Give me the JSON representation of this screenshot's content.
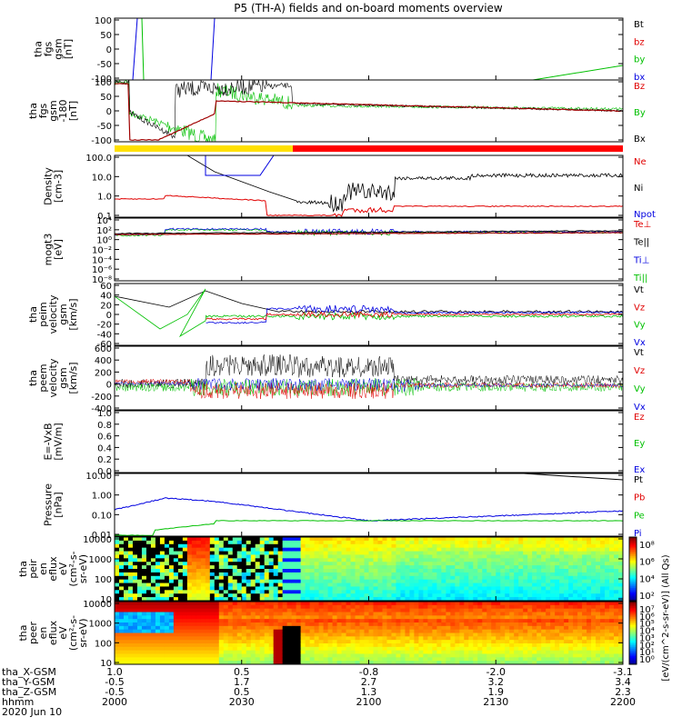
{
  "title": "P5 (TH-A) fields and on-board moments overview",
  "colors": {
    "black": "#000000",
    "red": "#e00000",
    "green": "#00c000",
    "blue": "#0000e0",
    "yellow": "#ffe000"
  },
  "chart_data": [
    {
      "type": "line",
      "name": "fgs_gsm",
      "ylabel_lines": [
        "tha",
        "fgs",
        "gsm",
        "[nT]"
      ],
      "yticks": [
        "100",
        "50",
        "0",
        "-50",
        "-100"
      ],
      "ylim": [
        -100,
        100
      ],
      "legend": [
        {
          "label": "Bt",
          "color": "black"
        },
        {
          "label": "bz",
          "color": "red"
        },
        {
          "label": "by",
          "color": "green"
        },
        {
          "label": "bx",
          "color": "blue"
        }
      ]
    },
    {
      "type": "line",
      "name": "fgs_gse",
      "ylabel_lines": [
        "tha",
        "fgs",
        "gsm",
        "-180",
        "[nT]"
      ],
      "yticks": [
        "100",
        "50",
        "0",
        "-50",
        "-100"
      ],
      "ylim": [
        -100,
        100
      ],
      "legend": [
        {
          "label": "Bz",
          "color": "red"
        },
        {
          "label": "By",
          "color": "green"
        },
        {
          "label": "Bx",
          "color": "black"
        }
      ]
    },
    {
      "type": "line",
      "name": "density",
      "ylabel_lines": [
        "Density",
        "[cm-3]"
      ],
      "yticks": [
        "100.0",
        "10.0",
        "1.0",
        "0.1"
      ],
      "log": true,
      "legend": [
        {
          "label": "Ne",
          "color": "red"
        },
        {
          "label": "Ni",
          "color": "black"
        },
        {
          "label": "Npot",
          "color": "blue"
        }
      ]
    },
    {
      "type": "line",
      "name": "temperature",
      "ylabel_lines": [
        "mogt3",
        "[eV]"
      ],
      "yticks": [
        "10⁴",
        "10²",
        "10⁰",
        "10⁻²",
        "10⁻⁴",
        "10⁻⁶",
        "10⁻⁸"
      ],
      "log": true,
      "legend": [
        {
          "label": "Te⊥",
          "color": "red"
        },
        {
          "label": "Te||",
          "color": "black"
        },
        {
          "label": "Ti⊥",
          "color": "blue"
        },
        {
          "label": "Ti||",
          "color": "green"
        }
      ]
    },
    {
      "type": "line",
      "name": "peim_velocity",
      "ylabel_lines": [
        "tha",
        "peim",
        "velocity",
        "gsm",
        "[km/s]"
      ],
      "yticks": [
        "60",
        "40",
        "20",
        "0",
        "-20",
        "-40",
        "-60"
      ],
      "ylim": [
        -60,
        60
      ],
      "legend": [
        {
          "label": "Vt",
          "color": "black"
        },
        {
          "label": "Vz",
          "color": "red"
        },
        {
          "label": "Vy",
          "color": "green"
        },
        {
          "label": "Vx",
          "color": "blue"
        }
      ]
    },
    {
      "type": "line",
      "name": "peem_velocity",
      "ylabel_lines": [
        "tha",
        "peem",
        "velocity",
        "gsm",
        "[km/s]"
      ],
      "yticks": [
        "600",
        "400",
        "200",
        "0",
        "-200",
        "-400"
      ],
      "ylim": [
        -400,
        600
      ],
      "legend": [
        {
          "label": "Vt",
          "color": "black"
        },
        {
          "label": "Vz",
          "color": "red"
        },
        {
          "label": "Vy",
          "color": "green"
        },
        {
          "label": "Vx",
          "color": "blue"
        }
      ]
    },
    {
      "type": "line",
      "name": "efield",
      "ylabel_lines": [
        "E=-VxB",
        "[mV/m]"
      ],
      "yticks": [
        "1.0",
        "0.8",
        "0.6",
        "0.4",
        "0.2",
        "0.0"
      ],
      "ylim": [
        0,
        1
      ],
      "legend": [
        {
          "label": "Ez",
          "color": "red"
        },
        {
          "label": "Ey",
          "color": "green"
        },
        {
          "label": "Ex",
          "color": "blue"
        }
      ]
    },
    {
      "type": "line",
      "name": "pressure",
      "ylabel_lines": [
        "Pressure",
        "[nPa]"
      ],
      "yticks": [
        "10.00",
        "1.00",
        "0.10",
        "0.01"
      ],
      "log": true,
      "legend": [
        {
          "label": "Pt",
          "color": "black"
        },
        {
          "label": "Pb",
          "color": "red"
        },
        {
          "label": "Pe",
          "color": "green"
        },
        {
          "label": "Pi",
          "color": "blue"
        }
      ]
    },
    {
      "type": "heatmap",
      "name": "peir_en_eflux",
      "ylabel_lines": [
        "tha",
        "peir",
        "en",
        "eflux",
        "eV",
        "(cm²-s-",
        "sr-eV)"
      ],
      "yticks": [
        "10000",
        "1000",
        "100",
        "10"
      ]
    },
    {
      "type": "heatmap",
      "name": "peer_en_eflux",
      "ylabel_lines": [
        "tha",
        "peer",
        "en",
        "eflux",
        "eV",
        "(cm²-s-",
        "sr-eV)"
      ],
      "yticks": [
        "10000",
        "1000",
        "100",
        "10"
      ]
    }
  ],
  "colorbar": {
    "label": "[eV/(cm^2-s-sr-eV)] (All Qs)",
    "top_ticks": [
      "10⁸",
      "10⁶",
      "10⁴",
      "10²"
    ],
    "bottom_ticks": [
      "10⁷",
      "10⁶",
      "10⁵",
      "10⁴",
      "10³",
      "10²",
      "10¹",
      "10⁰"
    ]
  },
  "x_axis": {
    "row_labels": [
      "tha_X-GSM",
      "tha_Y-GSM",
      "tha_Z-GSM",
      "hhmm",
      "2020 Jun 10"
    ],
    "columns": [
      {
        "x": "1.0",
        "y": "-0.5",
        "z": "-0.5",
        "t": "2000"
      },
      {
        "x": "0.5",
        "y": "1.7",
        "z": "0.5",
        "t": "2030"
      },
      {
        "x": "-0.8",
        "y": "2.7",
        "z": "1.3",
        "t": "2100"
      },
      {
        "x": "-2.0",
        "y": "3.2",
        "z": "1.9",
        "t": "2130"
      },
      {
        "x": "-3.1",
        "y": "3.4",
        "z": "2.3",
        "t": "2200"
      }
    ],
    "time_range": [
      "2000",
      "2200"
    ]
  }
}
